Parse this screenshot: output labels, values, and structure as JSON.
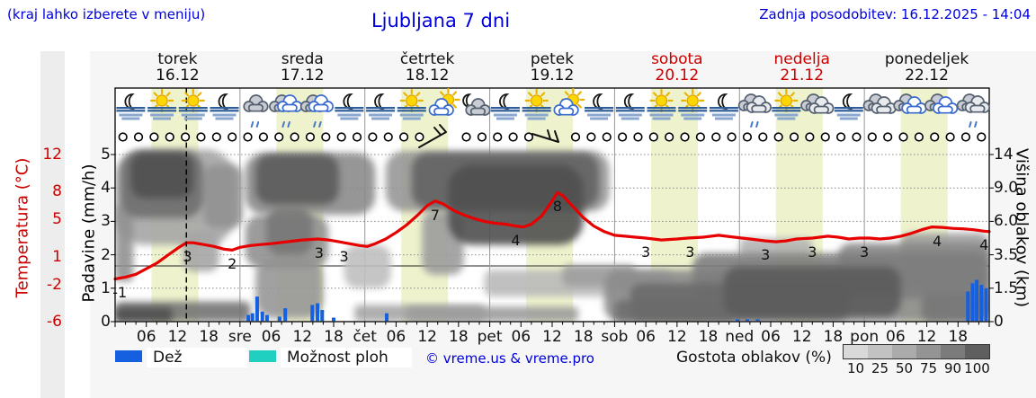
{
  "page": {
    "hint": "(kraj lahko izberete v meniju)",
    "title": "Ljubljana 7 dni",
    "last_update": "Zadnja posodobitev: 16.12.2025 - 14:04"
  },
  "colors": {
    "link_blue": "#0000dd",
    "warn_red": "#cc0000",
    "temp_curve": "#e60000",
    "rain_bar": "#1560e0",
    "shower": "#1fd0c0",
    "day_band": "#eff3cd",
    "fig_bg": "#f6f6f6",
    "strip_bg": "#ededed"
  },
  "days": [
    {
      "name": "torek",
      "date": "16.12",
      "color": "#111111",
      "t_center": 12
    },
    {
      "name": "sreda",
      "date": "17.12",
      "color": "#111111",
      "t_center": 36
    },
    {
      "name": "četrtek",
      "date": "18.12",
      "color": "#111111",
      "t_center": 60
    },
    {
      "name": "petek",
      "date": "19.12",
      "color": "#111111",
      "t_center": 84
    },
    {
      "name": "sobota",
      "date": "20.12",
      "color": "#cc0000",
      "t_center": 108
    },
    {
      "name": "nedelja",
      "date": "21.12",
      "color": "#cc0000",
      "t_center": 132
    },
    {
      "name": "ponedeljek",
      "date": "22.12",
      "color": "#111111",
      "t_center": 156
    }
  ],
  "axes": {
    "temperature": {
      "title": "Temperatura (°C)",
      "ticks": [
        12,
        8,
        5,
        1,
        -2,
        -6
      ]
    },
    "precip": {
      "title": "Padavine (mm/h)",
      "ticks": [
        "5",
        "4",
        "3",
        "2",
        "1",
        "0"
      ]
    },
    "cloud_height": {
      "title": "Višina oblakov (km)",
      "ticks": [
        "14",
        "9.0",
        "6.0",
        "3.5",
        "1.5",
        "0"
      ]
    },
    "time_labels": [
      {
        "t": 6,
        "text": "06"
      },
      {
        "t": 12,
        "text": "12"
      },
      {
        "t": 18,
        "text": "18"
      },
      {
        "t": 24,
        "text": "sre"
      },
      {
        "t": 30,
        "text": "06"
      },
      {
        "t": 36,
        "text": "12"
      },
      {
        "t": 42,
        "text": "18"
      },
      {
        "t": 48,
        "text": "čet"
      },
      {
        "t": 54,
        "text": "06"
      },
      {
        "t": 60,
        "text": "12"
      },
      {
        "t": 66,
        "text": "18"
      },
      {
        "t": 72,
        "text": "pet"
      },
      {
        "t": 78,
        "text": "06"
      },
      {
        "t": 84,
        "text": "12"
      },
      {
        "t": 90,
        "text": "18"
      },
      {
        "t": 96,
        "text": "sob"
      },
      {
        "t": 102,
        "text": "06"
      },
      {
        "t": 108,
        "text": "12"
      },
      {
        "t": 114,
        "text": "18"
      },
      {
        "t": 120,
        "text": "ned"
      },
      {
        "t": 126,
        "text": "06"
      },
      {
        "t": 132,
        "text": "12"
      },
      {
        "t": 138,
        "text": "18"
      },
      {
        "t": 144,
        "text": "pon"
      },
      {
        "t": 150,
        "text": "06"
      },
      {
        "t": 156,
        "text": "12"
      },
      {
        "t": 162,
        "text": "18"
      }
    ]
  },
  "icons": [
    "moon-fog",
    "sun-fog",
    "sun-fog",
    "moon-fog",
    "rain-gray",
    "rain-blue",
    "rain-blue",
    "moon-fog",
    "moon-fog",
    "sun-fog",
    "sun-cloud",
    "moon-cloud",
    "moon-fog",
    "sun-fog",
    "sun-cloud",
    "moon-fog",
    "moon-fog",
    "sun-fog",
    "sun-fog",
    "moon-fog",
    "cloud-drizzle",
    "sun-fog",
    "cloud-gray",
    "moon-fog",
    "cloud-gray",
    "cloud-blue",
    "cloud-blue",
    "cloud-drizzle"
  ],
  "wind_row": {
    "slots": 56,
    "barb_slots_1": [
      20,
      21
    ],
    "barb_slots_2": [
      27,
      28
    ]
  },
  "legend": {
    "rain_label": "Dež",
    "shower_label": "Možnost ploh",
    "copyright": "© vreme.us & vreme.pro",
    "cloud_density_label": "Gostota oblakov (%)",
    "density_ticks": [
      "10",
      "25",
      "50",
      "75",
      "90",
      "100"
    ],
    "density_colors": [
      "#d9d9d9",
      "#c2c2c2",
      "#ababab",
      "#949494",
      "#7b7b7b",
      "#5f5f5f"
    ]
  },
  "chart_data": {
    "type": "area",
    "title": "Ljubljana 7 dni meteogram",
    "x_unit": "hours since 2025-12-16 00:00",
    "current_time_t": 13.7,
    "day_bands": [
      [
        7,
        16
      ],
      [
        31,
        40
      ],
      [
        55,
        64
      ],
      [
        79,
        88
      ],
      [
        103,
        112
      ],
      [
        127,
        136
      ],
      [
        151,
        160
      ]
    ],
    "temperature": {
      "unit": "°C",
      "range": [
        -6,
        12
      ],
      "points": [
        [
          0,
          -1.4
        ],
        [
          2,
          -1.2
        ],
        [
          4,
          -0.9
        ],
        [
          6,
          -0.3
        ],
        [
          8,
          0.3
        ],
        [
          10,
          1.1
        ],
        [
          12,
          1.9
        ],
        [
          13.7,
          2.5
        ],
        [
          15,
          2.5
        ],
        [
          17,
          2.3
        ],
        [
          19,
          2.1
        ],
        [
          21,
          1.8
        ],
        [
          22.5,
          1.7
        ],
        [
          24,
          2.0
        ],
        [
          26,
          2.2
        ],
        [
          28,
          2.3
        ],
        [
          30,
          2.4
        ],
        [
          33,
          2.6
        ],
        [
          36,
          2.8
        ],
        [
          39,
          2.9
        ],
        [
          41,
          2.8
        ],
        [
          43,
          2.6
        ],
        [
          45,
          2.4
        ],
        [
          47,
          2.2
        ],
        [
          48.5,
          2.1
        ],
        [
          50,
          2.4
        ],
        [
          52,
          2.9
        ],
        [
          54,
          3.6
        ],
        [
          56,
          4.4
        ],
        [
          58,
          5.4
        ],
        [
          60,
          6.5
        ],
        [
          61.5,
          7.0
        ],
        [
          63,
          6.7
        ],
        [
          65,
          6.0
        ],
        [
          67,
          5.5
        ],
        [
          69,
          5.1
        ],
        [
          71,
          4.8
        ],
        [
          73,
          4.6
        ],
        [
          75,
          4.5
        ],
        [
          77,
          4.3
        ],
        [
          78.5,
          4.2
        ],
        [
          80,
          4.5
        ],
        [
          82,
          5.4
        ],
        [
          84,
          7.0
        ],
        [
          85,
          7.9
        ],
        [
          86,
          7.6
        ],
        [
          88,
          6.4
        ],
        [
          90,
          5.2
        ],
        [
          92,
          4.3
        ],
        [
          94,
          3.7
        ],
        [
          96,
          3.3
        ],
        [
          98,
          3.2
        ],
        [
          100,
          3.1
        ],
        [
          102,
          3.0
        ],
        [
          105,
          2.8
        ],
        [
          108,
          2.9
        ],
        [
          110,
          3.0
        ],
        [
          113,
          3.1
        ],
        [
          116,
          3.3
        ],
        [
          119,
          3.1
        ],
        [
          122,
          2.9
        ],
        [
          125,
          2.7
        ],
        [
          127,
          2.6
        ],
        [
          129,
          2.7
        ],
        [
          131,
          2.9
        ],
        [
          134,
          3.0
        ],
        [
          137,
          3.2
        ],
        [
          139,
          3.1
        ],
        [
          141,
          2.9
        ],
        [
          143,
          3.0
        ],
        [
          145,
          3.0
        ],
        [
          147,
          2.9
        ],
        [
          149,
          3.0
        ],
        [
          151,
          3.2
        ],
        [
          153,
          3.5
        ],
        [
          155,
          3.9
        ],
        [
          157,
          4.2
        ],
        [
          159,
          4.15
        ],
        [
          161,
          4.05
        ],
        [
          163,
          4.0
        ],
        [
          165,
          3.9
        ],
        [
          167,
          3.75
        ],
        [
          168,
          3.7
        ]
      ],
      "labels": [
        {
          "t": 0.9,
          "text": "-1"
        },
        {
          "t": 13.9,
          "text": "3"
        },
        {
          "t": 22.5,
          "text": "2"
        },
        {
          "t": 39.2,
          "text": "3"
        },
        {
          "t": 44,
          "text": "3"
        },
        {
          "t": 61.5,
          "text": "7"
        },
        {
          "t": 77,
          "text": "4"
        },
        {
          "t": 85,
          "text": "8"
        },
        {
          "t": 102,
          "text": "3"
        },
        {
          "t": 110.5,
          "text": "3"
        },
        {
          "t": 125,
          "text": "3"
        },
        {
          "t": 134,
          "text": "3"
        },
        {
          "t": 144,
          "text": "3"
        },
        {
          "t": 158,
          "text": "4"
        },
        {
          "t": 167,
          "text": "4"
        }
      ]
    },
    "precipitation": {
      "unit": "mm/h",
      "bars": [
        [
          25.6,
          0.2
        ],
        [
          26.4,
          0.25
        ],
        [
          27.3,
          0.75
        ],
        [
          28.3,
          0.3
        ],
        [
          29.2,
          0.2
        ],
        [
          31.6,
          0.15
        ],
        [
          32.7,
          0.4
        ],
        [
          37.9,
          0.5
        ],
        [
          38.9,
          0.55
        ],
        [
          39.8,
          0.35
        ],
        [
          42,
          0.12
        ],
        [
          52.2,
          0.25
        ],
        [
          119.6,
          0.07
        ],
        [
          121.5,
          0.07
        ],
        [
          123.5,
          0.07
        ],
        [
          163.9,
          0.9
        ],
        [
          164.8,
          1.15
        ],
        [
          165.6,
          1.25
        ],
        [
          166.5,
          1.1
        ],
        [
          167.4,
          1.0
        ]
      ]
    },
    "clouds": {
      "unit": "blobs [t0,t1,u_top,u_bottom,density%] (u = altitude grid units 0-5)",
      "blobs": [
        [
          0,
          23,
          2.3,
          5.15,
          45
        ],
        [
          1,
          17,
          3.1,
          5.1,
          72
        ],
        [
          3,
          15,
          3.7,
          5.05,
          88
        ],
        [
          0,
          3.5,
          1.2,
          3.5,
          55
        ],
        [
          13,
          20,
          1.5,
          2.7,
          45
        ],
        [
          17,
          24.5,
          2.8,
          4.7,
          55
        ],
        [
          0,
          26,
          0.0,
          0.6,
          70
        ],
        [
          0,
          11,
          0.0,
          0.42,
          88
        ],
        [
          25,
          50,
          3.2,
          5.05,
          58
        ],
        [
          27,
          43,
          3.5,
          5.0,
          82
        ],
        [
          25,
          41,
          1.6,
          3.2,
          55
        ],
        [
          27,
          40,
          0.1,
          1.9,
          52
        ],
        [
          29,
          38,
          2.0,
          3.4,
          68
        ],
        [
          44,
          53,
          1.0,
          2.3,
          32
        ],
        [
          52,
          95,
          3.3,
          5.1,
          52
        ],
        [
          57,
          93,
          3.4,
          5.05,
          78
        ],
        [
          64,
          90,
          2.3,
          4.7,
          88
        ],
        [
          59,
          67,
          1.4,
          3.3,
          50
        ],
        [
          71,
          107,
          0.75,
          1.55,
          35
        ],
        [
          86,
          100,
          1.05,
          1.7,
          48
        ],
        [
          46,
          71,
          0.0,
          0.5,
          45
        ],
        [
          56,
          89,
          0.0,
          0.45,
          50
        ],
        [
          94,
          168,
          0.0,
          1.55,
          58
        ],
        [
          99,
          141,
          0.05,
          1.15,
          75
        ],
        [
          111,
          168,
          0.7,
          2.05,
          65
        ],
        [
          117,
          151,
          0.15,
          1.65,
          82
        ],
        [
          139,
          168,
          1.1,
          2.35,
          60
        ],
        [
          151,
          168,
          1.7,
          2.65,
          48
        ],
        [
          120,
          134,
          1.9,
          2.5,
          38
        ],
        [
          96,
          119,
          0.0,
          0.65,
          72
        ],
        [
          155,
          168,
          0.0,
          0.85,
          68
        ]
      ]
    }
  }
}
